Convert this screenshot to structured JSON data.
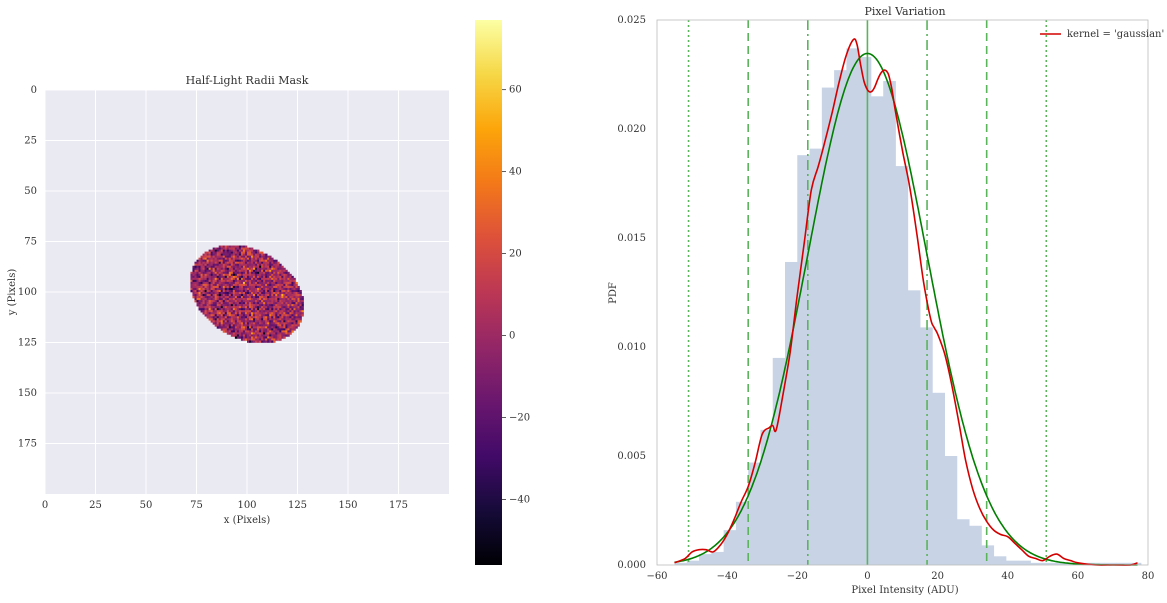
{
  "chart_data": [
    {
      "type": "heatmap",
      "title": "Half-Light Radii Mask",
      "xlabel": "x (Pixels)",
      "ylabel": "y (Pixels)",
      "xlim": [
        0,
        200
      ],
      "ylim": [
        200,
        0
      ],
      "xticks": [
        0,
        25,
        50,
        75,
        100,
        125,
        150,
        175
      ],
      "yticks": [
        0,
        25,
        50,
        75,
        100,
        125,
        150,
        175
      ],
      "grid": true,
      "colormap": "inferno",
      "mask": {
        "shape": "rotated ellipse",
        "center": [
          100,
          101
        ],
        "semi_axes": [
          30,
          22
        ],
        "rotation_deg": 30,
        "value_mean": 0,
        "value_std": 17
      },
      "colorbar": {
        "ticks": [
          -40,
          -20,
          0,
          20,
          40,
          60
        ],
        "tick_labels": [
          "−40",
          "−20",
          "0",
          "20",
          "40",
          "60"
        ],
        "range": [
          -56,
          77
        ]
      }
    },
    {
      "type": "histogram",
      "title": "Pixel Variation",
      "xlabel": "Pixel Intensity (ADU)",
      "ylabel": "PDF",
      "xlim": [
        -60,
        80
      ],
      "ylim": [
        0,
        0.025
      ],
      "xticks": [
        -60,
        -40,
        -20,
        0,
        20,
        40,
        60,
        80
      ],
      "xtick_labels": [
        "−60",
        "−40",
        "−20",
        "0",
        "20",
        "40",
        "60",
        "80"
      ],
      "yticks": [
        0.0,
        0.005,
        0.01,
        0.015,
        0.02,
        0.025
      ],
      "ytick_labels": [
        "0.000",
        "0.005",
        "0.010",
        "0.015",
        "0.020",
        "0.025"
      ],
      "histogram": {
        "bin_edges": [
          -55.0,
          -51.5,
          -48.0,
          -44.5,
          -41.0,
          -37.5,
          -34.0,
          -30.5,
          -27.0,
          -23.5,
          -20.0,
          -16.5,
          -13.0,
          -9.5,
          -6.0,
          -2.5,
          1.0,
          4.5,
          8.0,
          11.5,
          15.0,
          18.5,
          22.0,
          25.5,
          29.0,
          32.5,
          36.0,
          39.5,
          43.0,
          46.5,
          50.0,
          53.5,
          57.0,
          60.5,
          64.0,
          67.5,
          71.0,
          74.5,
          78.0
        ],
        "densities": [
          0.0001,
          0.0002,
          0.0005,
          0.0006,
          0.0016,
          0.0029,
          0.0047,
          0.0062,
          0.0095,
          0.0139,
          0.0188,
          0.0191,
          0.0219,
          0.0227,
          0.0237,
          0.0233,
          0.0215,
          0.0222,
          0.0183,
          0.0126,
          0.0109,
          0.0079,
          0.005,
          0.0021,
          0.0018,
          0.0009,
          0.0004,
          0.0002,
          0.0002,
          0.0001,
          0.0001,
          0.0001,
          0.0001,
          0.0001,
          0.0001,
          0.0001,
          0.0001,
          0.0001
        ],
        "color": "#c8d4e6"
      },
      "gaussian_fit": {
        "mean": 0.0,
        "std": 17.0,
        "color": "#007f00"
      },
      "kde": {
        "name": "kernel = 'gaussian'",
        "color": "#d40000",
        "x": [
          -55,
          -52,
          -50,
          -48,
          -46,
          -44,
          -42,
          -40,
          -38,
          -36,
          -34,
          -32,
          -30,
          -28,
          -27,
          -26,
          -24,
          -22,
          -20,
          -18,
          -16,
          -14,
          -12,
          -10,
          -8,
          -6,
          -4,
          -3,
          -2,
          -1,
          0,
          1,
          2,
          3,
          4,
          5,
          6,
          7,
          8,
          10,
          12,
          14,
          16,
          18,
          19,
          20,
          22,
          24,
          26,
          28,
          30,
          32,
          34,
          36,
          38,
          40,
          42,
          44,
          46,
          48,
          50,
          52,
          54,
          56,
          58,
          60,
          65,
          70,
          75,
          77
        ],
        "y": [
          0.0001,
          0.0003,
          0.0006,
          0.0007,
          0.0007,
          0.0006,
          0.0009,
          0.0014,
          0.0021,
          0.0029,
          0.0036,
          0.0047,
          0.006,
          0.0063,
          0.0064,
          0.0062,
          0.0079,
          0.0098,
          0.0124,
          0.0148,
          0.0172,
          0.0183,
          0.0195,
          0.0208,
          0.0222,
          0.0234,
          0.0241,
          0.0239,
          0.023,
          0.0222,
          0.0218,
          0.0217,
          0.0219,
          0.0223,
          0.0226,
          0.0227,
          0.0225,
          0.0218,
          0.0208,
          0.019,
          0.0174,
          0.0153,
          0.013,
          0.0113,
          0.0109,
          0.0106,
          0.0097,
          0.0083,
          0.0066,
          0.0048,
          0.0035,
          0.0026,
          0.002,
          0.0016,
          0.0014,
          0.0013,
          0.001,
          0.0007,
          0.0004,
          0.0003,
          0.0002,
          0.0004,
          0.0005,
          0.0003,
          0.0002,
          0.0001,
          0.0,
          0.0,
          0.0,
          0.0001
        ]
      },
      "vlines": [
        {
          "x": 0,
          "style": "solid",
          "color": "#5ab45a"
        },
        {
          "x": -17,
          "style": "dashdot",
          "color": "#5ab45a"
        },
        {
          "x": 17,
          "style": "dashdot",
          "color": "#5ab45a"
        },
        {
          "x": -34,
          "style": "dashed",
          "color": "#5ab45a"
        },
        {
          "x": 34,
          "style": "dashed",
          "color": "#5ab45a"
        },
        {
          "x": -51,
          "style": "dotted",
          "color": "#5ab45a"
        },
        {
          "x": 51,
          "style": "dotted",
          "color": "#5ab45a"
        }
      ],
      "legend": {
        "placement": "upper right",
        "entries": [
          "kernel = 'gaussian'"
        ]
      }
    }
  ]
}
